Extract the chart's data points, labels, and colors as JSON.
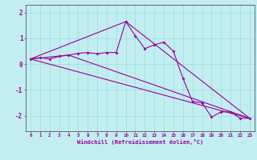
{
  "xlabel": "Windchill (Refroidissement éolien,°C)",
  "bg_color": "#c2eef0",
  "line_color": "#990099",
  "grid_color": "#99dddd",
  "x_ticks": [
    0,
    1,
    2,
    3,
    4,
    5,
    6,
    7,
    8,
    9,
    10,
    11,
    12,
    13,
    14,
    15,
    16,
    17,
    18,
    19,
    20,
    21,
    22,
    23
  ],
  "ylim": [
    -2.6,
    2.3
  ],
  "xlim": [
    -0.5,
    23.5
  ],
  "series1_x": [
    0,
    1,
    2,
    3,
    4,
    5,
    6,
    7,
    8,
    9,
    10,
    11,
    12,
    13,
    14,
    15,
    16,
    17,
    18,
    19,
    20,
    21,
    22,
    23
  ],
  "series1_y": [
    0.2,
    0.25,
    0.2,
    0.3,
    0.35,
    0.42,
    0.45,
    0.4,
    0.45,
    0.45,
    1.65,
    1.1,
    0.6,
    0.75,
    0.85,
    0.5,
    -0.55,
    -1.45,
    -1.5,
    -2.05,
    -1.85,
    -1.85,
    -2.1,
    -2.1
  ],
  "series2_x": [
    0,
    23
  ],
  "series2_y": [
    0.2,
    -2.1
  ],
  "series3_x": [
    0,
    4,
    23
  ],
  "series3_y": [
    0.2,
    0.35,
    -2.1
  ],
  "series4_x": [
    0,
    10,
    23
  ],
  "series4_y": [
    0.2,
    1.65,
    -2.1
  ],
  "yticks": [
    -2,
    -1,
    0,
    1,
    2
  ],
  "ytick_labels": [
    "-2",
    "-1",
    "0",
    "1",
    "2"
  ]
}
